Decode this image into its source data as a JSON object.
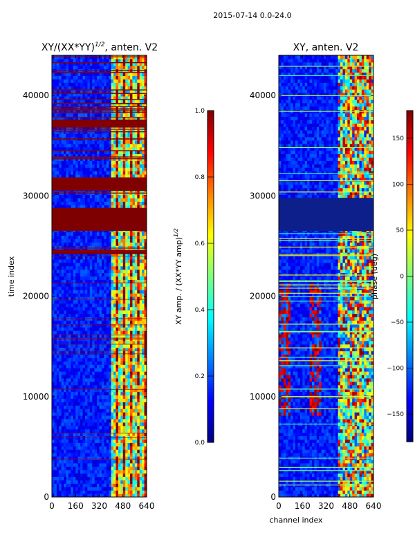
{
  "suptitle": "2015-07-14 0.0-24.0",
  "chart_data": [
    {
      "type": "heatmap",
      "title": "XY/(XX*YY)^{1/2}, anten. V2",
      "title_main": "XY/(XX*YY)",
      "title_exp": "1/2",
      "title_rest": ", anten. V2",
      "xlabel": "",
      "ylabel": "time index",
      "xlim": [
        0,
        640
      ],
      "ylim": [
        0,
        44000
      ],
      "xticks": [
        0,
        160,
        320,
        480,
        640
      ],
      "yticks": [
        0,
        10000,
        20000,
        30000,
        40000
      ],
      "xtick_labels": [
        "0",
        "160",
        "320",
        "480",
        "640"
      ],
      "ytick_labels": [
        "0",
        "10000",
        "20000",
        "30000",
        "40000"
      ],
      "colormap": "jet",
      "colorbar": {
        "label": "XY amp. / (XX*YY amp)^{1/2}",
        "label_main": "XY amp. / (XX*YY amp)",
        "label_exp": "1/2",
        "range": [
          0.0,
          1.0
        ],
        "ticks": [
          0.0,
          0.2,
          0.4,
          0.6,
          0.8,
          1.0
        ],
        "tick_labels": [
          "0.0",
          "0.2",
          "0.4",
          "0.6",
          "0.8",
          "1.0"
        ]
      },
      "bright_channel_band": [
        400,
        640
      ],
      "saturated_time_blocks": [
        [
          26500,
          28800
        ],
        [
          30500,
          31800
        ],
        [
          36800,
          37600
        ],
        [
          24200,
          24600
        ]
      ]
    },
    {
      "type": "heatmap",
      "title": "XY, anten. V2",
      "xlabel": "channel index",
      "ylabel": "",
      "xlim": [
        0,
        640
      ],
      "ylim": [
        0,
        44000
      ],
      "xticks": [
        0,
        160,
        320,
        480,
        640
      ],
      "yticks": [
        0,
        10000,
        20000,
        30000,
        40000
      ],
      "xtick_labels": [
        "0",
        "160",
        "320",
        "480",
        "640"
      ],
      "ytick_labels": [
        "0",
        "10000",
        "20000",
        "30000",
        "40000"
      ],
      "colormap": "jet",
      "colorbar": {
        "label": "phase (deg)",
        "range": [
          -180,
          180
        ],
        "ticks": [
          -150,
          -100,
          -50,
          0,
          50,
          100,
          150
        ],
        "tick_labels": [
          "−150",
          "−100",
          "−50",
          "0",
          "50",
          "100",
          "150"
        ]
      },
      "bright_channel_band": [
        400,
        640
      ],
      "low_phase_time_block": [
        26500,
        29800
      ]
    }
  ]
}
